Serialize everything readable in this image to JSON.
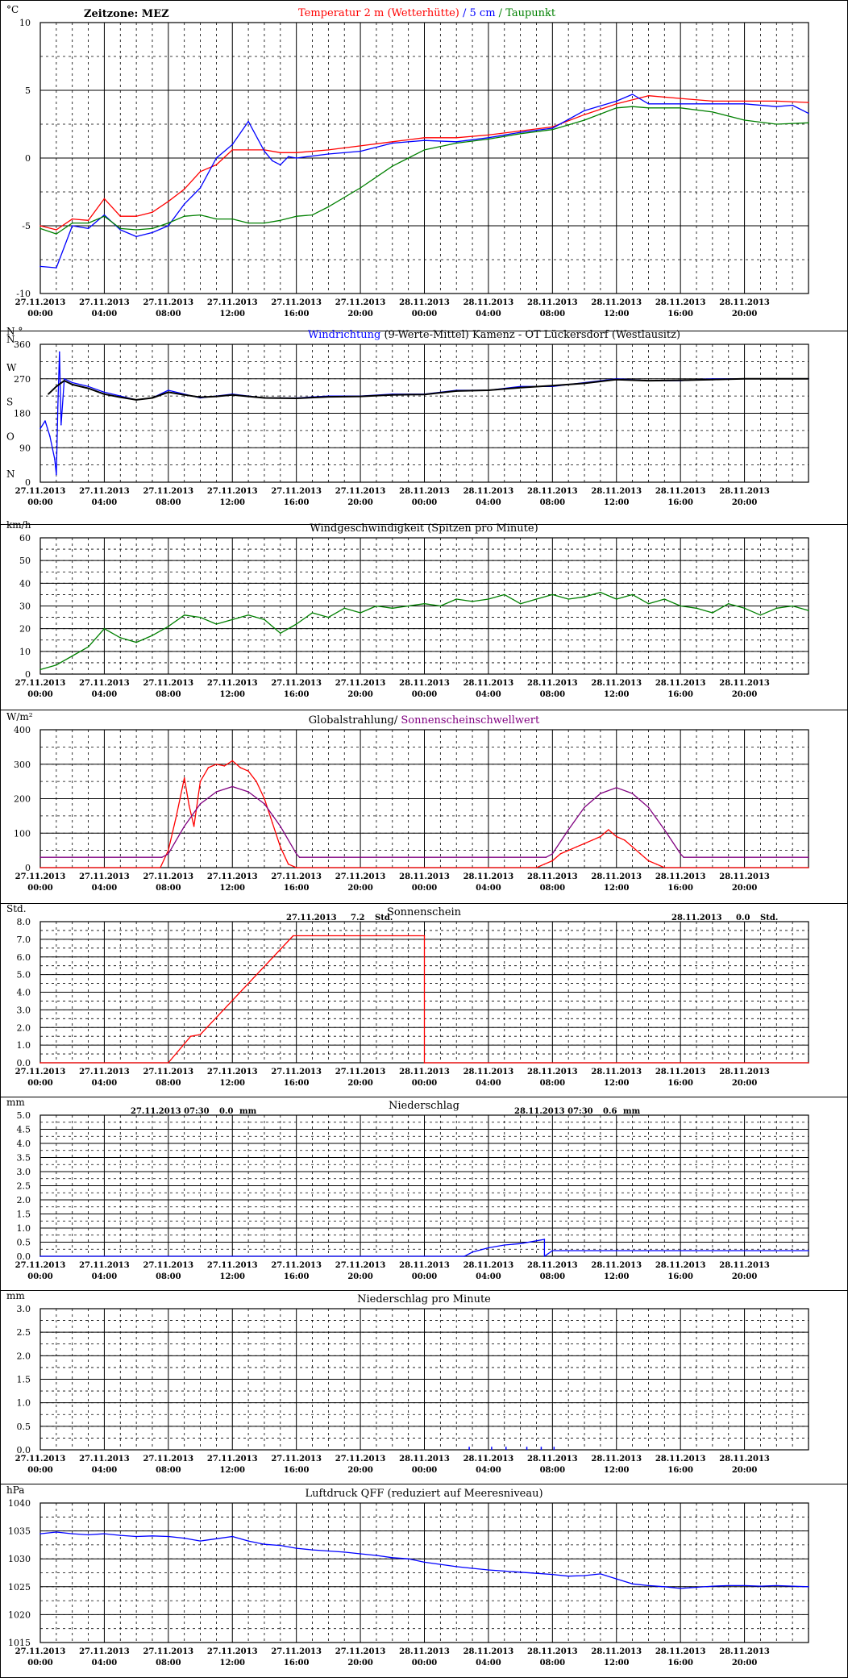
{
  "timezone_label": "Zeitzone: MEZ",
  "x_tick_dates": [
    "27.11.2013",
    "27.11.2013",
    "27.11.2013",
    "27.11.2013",
    "27.11.2013",
    "27.11.2013",
    "28.11.2013",
    "28.11.2013",
    "28.11.2013",
    "28.11.2013",
    "28.11.2013",
    "28.11.2013"
  ],
  "x_tick_times": [
    "00:00",
    "04:00",
    "08:00",
    "12:00",
    "16:00",
    "20:00",
    "00:00",
    "04:00",
    "08:00",
    "12:00",
    "16:00",
    "20:00"
  ],
  "chart_data": [
    {
      "id": "temperature",
      "type": "line",
      "unit": "°C",
      "title_parts": [
        {
          "text": "Temperatur 2 m (Wetterhütte)",
          "color": "#ff0000"
        },
        {
          "text": " / ",
          "color": "#0000ff"
        },
        {
          "text": "5 cm",
          "color": "#0000ff"
        },
        {
          "text": " / ",
          "color": "#008000"
        },
        {
          "text": "Taupunkt",
          "color": "#008000"
        }
      ],
      "x_range_hours": [
        0,
        48
      ],
      "ylim": [
        -10,
        10
      ],
      "y_ticks": [
        -10,
        -5,
        0,
        5,
        10
      ],
      "y_tick_labels": [
        "-10",
        "-5",
        "0",
        "5",
        "10"
      ],
      "grid": true,
      "series": [
        {
          "color": "#ff0000",
          "x": [
            0,
            1,
            2,
            3,
            4,
            5,
            6,
            7,
            8,
            9,
            10,
            11,
            12,
            13,
            14,
            15,
            16,
            18,
            20,
            22,
            24,
            26,
            28,
            30,
            32,
            34,
            36,
            38,
            40,
            42,
            44,
            46,
            48
          ],
          "y": [
            -5.0,
            -5.3,
            -4.5,
            -4.6,
            -3.0,
            -4.3,
            -4.3,
            -4.0,
            -3.2,
            -2.3,
            -1.0,
            -0.5,
            0.6,
            0.6,
            0.6,
            0.4,
            0.4,
            0.6,
            0.9,
            1.2,
            1.5,
            1.5,
            1.7,
            2.0,
            2.3,
            3.2,
            4.0,
            4.6,
            4.4,
            4.2,
            4.2,
            4.2,
            4.1
          ]
        },
        {
          "color": "#0000ff",
          "x": [
            0,
            1,
            2,
            3,
            4,
            5,
            6,
            7,
            8,
            9,
            10,
            11,
            12,
            13,
            14,
            14.5,
            15,
            15.5,
            16,
            18,
            20,
            22,
            24,
            26,
            28,
            30,
            32,
            34,
            36,
            37,
            38,
            40,
            42,
            44,
            46,
            47,
            48
          ],
          "y": [
            -8.0,
            -8.1,
            -5.0,
            -5.2,
            -4.2,
            -5.3,
            -5.8,
            -5.5,
            -5.0,
            -3.4,
            -2.2,
            0.0,
            1.0,
            2.7,
            0.5,
            -0.2,
            -0.5,
            0.1,
            0.0,
            0.3,
            0.5,
            1.1,
            1.3,
            1.2,
            1.5,
            1.9,
            2.2,
            3.5,
            4.2,
            4.7,
            4.0,
            4.0,
            4.0,
            4.0,
            3.8,
            3.9,
            3.3
          ]
        },
        {
          "color": "#008000",
          "x": [
            0,
            1,
            2,
            3,
            4,
            5,
            6,
            7,
            8,
            9,
            10,
            11,
            12,
            13,
            14,
            15,
            16,
            17,
            18,
            20,
            22,
            23,
            24,
            26,
            28,
            30,
            32,
            34,
            36,
            37,
            38,
            40,
            42,
            44,
            46,
            48
          ],
          "y": [
            -5.2,
            -5.6,
            -4.8,
            -4.8,
            -4.3,
            -5.2,
            -5.3,
            -5.2,
            -4.8,
            -4.3,
            -4.2,
            -4.5,
            -4.5,
            -4.8,
            -4.8,
            -4.6,
            -4.3,
            -4.2,
            -3.6,
            -2.2,
            -0.6,
            0.0,
            0.6,
            1.1,
            1.4,
            1.8,
            2.1,
            2.8,
            3.7,
            3.8,
            3.7,
            3.7,
            3.4,
            2.8,
            2.5,
            2.6
          ]
        }
      ]
    },
    {
      "id": "wind_direction",
      "type": "line",
      "unit": "N °",
      "title_parts": [
        {
          "text": "Windrichtung",
          "color": "#0000ff"
        },
        {
          "text": " (9-Werte-Mittel)",
          "color": "#000000"
        },
        {
          "text": "          Kamenz - OT Lückersdorf (Westlausitz)",
          "color": "#000000"
        }
      ],
      "x_range_hours": [
        0,
        48
      ],
      "ylim": [
        0,
        360
      ],
      "y_ticks": [
        0,
        90,
        180,
        270,
        360
      ],
      "y_tick_labels": [
        "0",
        "90",
        "180",
        "270",
        "360"
      ],
      "compass_labels": [
        "N",
        "O",
        "S",
        "W",
        "N"
      ],
      "grid": true,
      "series": [
        {
          "color": "#0000ff",
          "x": [
            0,
            0.3,
            0.6,
            0.9,
            1.0,
            1.1,
            1.2,
            1.3,
            1.5,
            2,
            3,
            4,
            5,
            6,
            7,
            8,
            9,
            10,
            11,
            12,
            14,
            16,
            18,
            20,
            22,
            24,
            26,
            28,
            30,
            32,
            34,
            36,
            38,
            40,
            42,
            44,
            46,
            48
          ],
          "y": [
            140,
            160,
            120,
            60,
            20,
            200,
            340,
            150,
            270,
            260,
            250,
            235,
            225,
            215,
            220,
            240,
            230,
            220,
            225,
            230,
            220,
            220,
            225,
            225,
            230,
            230,
            240,
            240,
            250,
            250,
            260,
            270,
            265,
            265,
            270,
            270,
            270,
            270
          ]
        },
        {
          "color": "#000000",
          "x": [
            0.5,
            1,
            1.5,
            2,
            3,
            4,
            5,
            6,
            7,
            8,
            9,
            10,
            11,
            12,
            14,
            16,
            18,
            20,
            22,
            24,
            26,
            28,
            30,
            32,
            34,
            36,
            38,
            40,
            42,
            44,
            46,
            48
          ],
          "y": [
            230,
            250,
            265,
            255,
            245,
            230,
            222,
            215,
            220,
            235,
            228,
            222,
            224,
            228,
            220,
            219,
            223,
            224,
            228,
            229,
            238,
            240,
            247,
            252,
            258,
            268,
            265,
            266,
            268,
            270,
            270,
            270
          ]
        }
      ]
    },
    {
      "id": "wind_speed",
      "type": "line",
      "unit": "km/h",
      "title_parts": [
        {
          "text": "Windgeschwindigkeit (Spitzen pro Minute)",
          "color": "#000000"
        }
      ],
      "x_range_hours": [
        0,
        48
      ],
      "ylim": [
        0,
        60
      ],
      "y_ticks": [
        0,
        10,
        20,
        30,
        40,
        50,
        60
      ],
      "y_tick_labels": [
        "0",
        "10",
        "20",
        "30",
        "40",
        "50",
        "60"
      ],
      "grid": true,
      "series": [
        {
          "color": "#008000",
          "x": [
            0,
            1,
            2,
            3,
            4,
            5,
            6,
            7,
            8,
            9,
            10,
            11,
            12,
            13,
            14,
            15,
            16,
            17,
            18,
            19,
            20,
            21,
            22,
            23,
            24,
            25,
            26,
            27,
            28,
            29,
            30,
            31,
            32,
            33,
            34,
            35,
            36,
            37,
            38,
            39,
            40,
            41,
            42,
            43,
            44,
            45,
            46,
            47,
            48
          ],
          "y": [
            2,
            4,
            8,
            12,
            20,
            16,
            14,
            17,
            21,
            26,
            25,
            22,
            24,
            26,
            24,
            18,
            22,
            27,
            25,
            29,
            27,
            30,
            29,
            30,
            31,
            30,
            33,
            32,
            33,
            35,
            31,
            33,
            35,
            33,
            34,
            36,
            33,
            35,
            31,
            33,
            30,
            29,
            27,
            31,
            29,
            26,
            29,
            30,
            28
          ]
        }
      ]
    },
    {
      "id": "global_radiation",
      "type": "line",
      "unit": "W/m²",
      "title_parts": [
        {
          "text": "Globalstrahlung/ ",
          "color": "#000000"
        },
        {
          "text": "Sonnenscheinschwellwert",
          "color": "#800080"
        }
      ],
      "x_range_hours": [
        0,
        48
      ],
      "ylim": [
        0,
        400
      ],
      "y_ticks": [
        0,
        100,
        200,
        300,
        400
      ],
      "y_tick_labels": [
        "0",
        "100",
        "200",
        "300",
        "400"
      ],
      "grid": true,
      "series": [
        {
          "color": "#ff0000",
          "x": [
            0,
            7.5,
            8,
            8.5,
            9,
            9.3,
            9.6,
            10,
            10.5,
            11,
            11.5,
            12,
            12.5,
            13,
            13.5,
            14,
            14.5,
            15,
            15.5,
            16,
            24,
            31,
            31.5,
            32,
            32.5,
            33,
            33.5,
            34,
            34.5,
            35,
            35.5,
            36,
            36.5,
            37,
            37.5,
            38,
            38.5,
            39,
            48
          ],
          "y": [
            0,
            0,
            50,
            150,
            260,
            180,
            120,
            250,
            290,
            300,
            295,
            310,
            290,
            280,
            250,
            200,
            130,
            60,
            10,
            0,
            0,
            0,
            10,
            20,
            40,
            50,
            60,
            70,
            80,
            90,
            110,
            90,
            80,
            60,
            40,
            20,
            10,
            0,
            0
          ]
        },
        {
          "color": "#800080",
          "x": [
            0,
            7.6,
            8,
            9,
            10,
            11,
            12,
            13,
            14,
            15,
            16,
            16.2,
            31.6,
            32,
            33,
            34,
            35,
            36,
            37,
            38,
            39,
            40,
            40.2,
            48
          ],
          "y": [
            30,
            30,
            40,
            120,
            185,
            220,
            235,
            220,
            185,
            120,
            40,
            30,
            30,
            40,
            110,
            175,
            215,
            232,
            215,
            175,
            110,
            40,
            30,
            30
          ]
        }
      ]
    },
    {
      "id": "sunshine",
      "type": "line",
      "unit": "Std.",
      "title_parts": [
        {
          "text": "Sonnenschein",
          "color": "#000000"
        }
      ],
      "annotations": [
        {
          "date": "27.11.2013",
          "value": "7.2",
          "unit": "Std."
        },
        {
          "date": "28.11.2013",
          "value": "0.0",
          "unit": "Std."
        }
      ],
      "x_range_hours": [
        0,
        48
      ],
      "ylim": [
        0,
        8
      ],
      "y_ticks": [
        0,
        1,
        2,
        3,
        4,
        5,
        6,
        7,
        8
      ],
      "y_tick_labels": [
        "0.0",
        "1.0",
        "2.0",
        "3.0",
        "4.0",
        "5.0",
        "6.0",
        "7.0",
        "8.0"
      ],
      "grid": true,
      "series": [
        {
          "color": "#ff0000",
          "x": [
            0,
            8,
            9.4,
            10,
            15.8,
            24,
            24,
            48
          ],
          "y": [
            0,
            0,
            1.5,
            1.6,
            7.2,
            7.2,
            0,
            0
          ]
        }
      ]
    },
    {
      "id": "precipitation",
      "type": "line",
      "unit": "mm",
      "title_parts": [
        {
          "text": "Niederschlag",
          "color": "#000000"
        }
      ],
      "annotations": [
        {
          "date": "27.11.2013 07:30",
          "value": "0.0",
          "unit": "mm"
        },
        {
          "date": "28.11.2013 07:30",
          "value": "0.6",
          "unit": "mm"
        }
      ],
      "x_range_hours": [
        0,
        48
      ],
      "ylim": [
        0,
        5
      ],
      "y_ticks": [
        0,
        0.5,
        1,
        1.5,
        2,
        2.5,
        3,
        3.5,
        4,
        4.5,
        5
      ],
      "y_tick_labels": [
        "0.0",
        "0.5",
        "1.0",
        "1.5",
        "2.0",
        "2.5",
        "3.0",
        "3.5",
        "4.0",
        "4.5",
        "5.0"
      ],
      "grid": true,
      "series": [
        {
          "color": "#0000ff",
          "x": [
            0,
            26.5,
            27,
            28,
            29,
            30,
            31,
            31.5,
            31.5,
            32,
            48
          ],
          "y": [
            0,
            0,
            0.15,
            0.3,
            0.4,
            0.45,
            0.55,
            0.6,
            0,
            0.2,
            0.2
          ]
        }
      ]
    },
    {
      "id": "precipitation_per_minute",
      "type": "bar",
      "unit": "mm",
      "title_parts": [
        {
          "text": "Niederschlag pro Minute",
          "color": "#000000"
        }
      ],
      "x_range_hours": [
        0,
        48
      ],
      "ylim": [
        0,
        3
      ],
      "y_ticks": [
        0,
        0.5,
        1,
        1.5,
        2,
        2.5,
        3
      ],
      "y_tick_labels": [
        "0.0",
        "0.5",
        "1.0",
        "1.5",
        "2.0",
        "2.5",
        "3.0"
      ],
      "grid": true,
      "series": [
        {
          "color": "#0000ff",
          "x": [
            26.8,
            28.2,
            29.1,
            30.4,
            31.3,
            32.1
          ],
          "y": [
            0.03,
            0.03,
            0.03,
            0.03,
            0.03,
            0.03
          ]
        }
      ]
    },
    {
      "id": "pressure",
      "type": "line",
      "unit": "hPa",
      "title_parts": [
        {
          "text": "Luftdruck QFF (reduziert auf Meeresniveau)",
          "color": "#000000"
        }
      ],
      "x_range_hours": [
        0,
        48
      ],
      "ylim": [
        1015,
        1040
      ],
      "y_ticks": [
        1015,
        1020,
        1025,
        1030,
        1035,
        1040
      ],
      "y_tick_labels": [
        "1015",
        "1020",
        "1025",
        "1030",
        "1035",
        "1040"
      ],
      "grid": true,
      "series": [
        {
          "color": "#0000ff",
          "x": [
            0,
            1,
            2,
            3,
            4,
            5,
            6,
            7,
            8,
            9,
            10,
            11,
            12,
            13,
            14,
            15,
            16,
            17,
            18,
            19,
            20,
            21,
            22,
            23,
            24,
            25,
            26,
            27,
            28,
            29,
            30,
            31,
            32,
            33,
            34,
            35,
            36,
            37,
            38,
            39,
            40,
            41,
            42,
            43,
            44,
            45,
            46,
            47,
            48
          ],
          "y": [
            1034.5,
            1034.8,
            1034.5,
            1034.3,
            1034.5,
            1034.2,
            1034.0,
            1034.1,
            1034.0,
            1033.7,
            1033.2,
            1033.6,
            1034.0,
            1033.2,
            1032.6,
            1032.4,
            1031.9,
            1031.6,
            1031.4,
            1031.2,
            1030.9,
            1030.6,
            1030.2,
            1030.0,
            1029.4,
            1029.0,
            1028.6,
            1028.3,
            1028.0,
            1027.8,
            1027.6,
            1027.4,
            1027.2,
            1026.9,
            1027.0,
            1027.3,
            1026.4,
            1025.5,
            1025.2,
            1025.0,
            1024.7,
            1024.9,
            1025.1,
            1025.2,
            1025.2,
            1025.1,
            1025.2,
            1025.1,
            1025.0
          ]
        }
      ]
    }
  ]
}
